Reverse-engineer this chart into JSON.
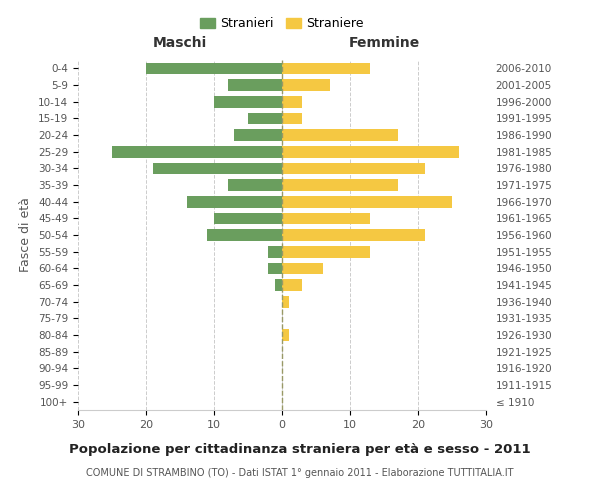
{
  "age_groups": [
    "100+",
    "95-99",
    "90-94",
    "85-89",
    "80-84",
    "75-79",
    "70-74",
    "65-69",
    "60-64",
    "55-59",
    "50-54",
    "45-49",
    "40-44",
    "35-39",
    "30-34",
    "25-29",
    "20-24",
    "15-19",
    "10-14",
    "5-9",
    "0-4"
  ],
  "birth_years": [
    "≤ 1910",
    "1911-1915",
    "1916-1920",
    "1921-1925",
    "1926-1930",
    "1931-1935",
    "1936-1940",
    "1941-1945",
    "1946-1950",
    "1951-1955",
    "1956-1960",
    "1961-1965",
    "1966-1970",
    "1971-1975",
    "1976-1980",
    "1981-1985",
    "1986-1990",
    "1991-1995",
    "1996-2000",
    "2001-2005",
    "2006-2010"
  ],
  "maschi": [
    0,
    0,
    0,
    0,
    0,
    0,
    0,
    1,
    2,
    2,
    11,
    10,
    14,
    8,
    19,
    25,
    7,
    5,
    10,
    8,
    20
  ],
  "femmine": [
    0,
    0,
    0,
    0,
    1,
    0,
    1,
    3,
    6,
    13,
    21,
    13,
    25,
    17,
    21,
    26,
    17,
    3,
    3,
    7,
    13
  ],
  "male_color": "#6a9e5e",
  "female_color": "#f5c842",
  "title": "Popolazione per cittadinanza straniera per età e sesso - 2011",
  "subtitle": "COMUNE DI STRAMBINO (TO) - Dati ISTAT 1° gennaio 2011 - Elaborazione TUTTITALIA.IT",
  "ylabel_left": "Fasce di età",
  "xlabel_left": "Maschi",
  "xlabel_right": "Femmine",
  "legend_maschi": "Stranieri",
  "legend_femmine": "Straniere",
  "xlim": 30,
  "background_color": "#ffffff",
  "grid_color": "#cccccc"
}
